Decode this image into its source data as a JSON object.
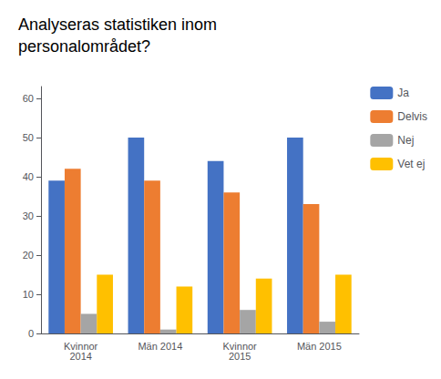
{
  "chart_data": {
    "type": "bar",
    "title": "Analyseras statistiken inom\npersonalområdet?",
    "categories": [
      "Kvinnor\n2014",
      "Män 2014",
      "Kvinnor\n2015",
      "Män 2015"
    ],
    "series": [
      {
        "name": "Ja",
        "color": "#4472C4",
        "values": [
          39,
          50,
          44,
          50
        ]
      },
      {
        "name": "Delvis",
        "color": "#ED7D31",
        "values": [
          42,
          39,
          36,
          33
        ]
      },
      {
        "name": "Nej",
        "color": "#A5A5A5",
        "values": [
          5,
          1,
          6,
          3
        ]
      },
      {
        "name": "Vet ej",
        "color": "#FFC000",
        "values": [
          15,
          12,
          14,
          15
        ]
      }
    ],
    "ylim": [
      0,
      63
    ],
    "yticks": [
      0,
      10,
      20,
      30,
      40,
      50,
      60
    ],
    "grid": false,
    "legend": "upper right"
  }
}
